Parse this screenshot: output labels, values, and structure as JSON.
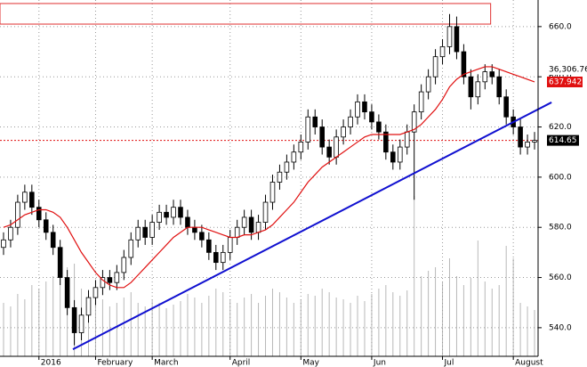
{
  "chart_data": {
    "type": "candlestick",
    "categories": [
      null,
      null,
      null,
      null,
      null,
      "2016",
      null,
      null,
      null,
      null,
      null,
      null,
      null,
      "February",
      null,
      null,
      null,
      null,
      null,
      null,
      null,
      "March",
      null,
      null,
      null,
      null,
      null,
      null,
      null,
      null,
      null,
      null,
      "April",
      null,
      null,
      null,
      null,
      null,
      null,
      null,
      null,
      null,
      "May",
      null,
      null,
      null,
      null,
      null,
      null,
      null,
      null,
      null,
      "Jun",
      null,
      null,
      null,
      null,
      null,
      null,
      null,
      null,
      null,
      "Jul",
      null,
      null,
      null,
      null,
      null,
      null,
      null,
      null,
      null,
      "August",
      null,
      null,
      null
    ],
    "open": [
      572,
      575,
      580,
      590,
      594,
      588,
      583,
      578,
      572,
      560,
      548,
      538,
      545,
      552,
      556,
      560,
      558,
      562,
      568,
      575,
      580,
      576,
      582,
      586,
      584,
      588,
      584,
      580,
      578,
      575,
      570,
      566,
      570,
      576,
      580,
      584,
      578,
      582,
      590,
      598,
      602,
      606,
      610,
      614,
      624,
      620,
      612,
      608,
      616,
      620,
      624,
      630,
      626,
      622,
      618,
      610,
      606,
      612,
      618,
      626,
      634,
      640,
      648,
      652,
      660,
      650,
      640,
      632,
      638,
      642,
      640,
      632,
      624,
      620,
      612,
      614
    ],
    "high": [
      578,
      583,
      593,
      597,
      597,
      591,
      586,
      581,
      575,
      563,
      551,
      548,
      555,
      559,
      563,
      563,
      565,
      571,
      578,
      583,
      583,
      585,
      589,
      589,
      591,
      591,
      587,
      583,
      581,
      578,
      573,
      573,
      579,
      583,
      587,
      587,
      585,
      593,
      601,
      605,
      609,
      613,
      617,
      627,
      627,
      623,
      615,
      619,
      623,
      627,
      633,
      633,
      629,
      625,
      621,
      613,
      615,
      621,
      629,
      637,
      643,
      651,
      655,
      665,
      664,
      653,
      643,
      641,
      645,
      645,
      643,
      635,
      627,
      623,
      617,
      618
    ],
    "low": [
      569,
      572,
      577,
      587,
      585,
      580,
      575,
      569,
      557,
      545,
      533,
      535,
      542,
      549,
      553,
      555,
      555,
      559,
      565,
      572,
      573,
      573,
      579,
      581,
      581,
      581,
      577,
      575,
      572,
      567,
      563,
      563,
      567,
      573,
      577,
      575,
      575,
      579,
      587,
      595,
      599,
      603,
      607,
      611,
      617,
      609,
      605,
      605,
      613,
      617,
      621,
      623,
      619,
      615,
      607,
      603,
      603,
      609,
      591,
      623,
      631,
      637,
      645,
      649,
      647,
      637,
      627,
      629,
      635,
      637,
      629,
      621,
      617,
      609,
      609,
      611
    ],
    "close": [
      575,
      580,
      590,
      594,
      588,
      583,
      578,
      572,
      560,
      548,
      538,
      545,
      552,
      556,
      560,
      558,
      562,
      568,
      575,
      580,
      576,
      582,
      586,
      584,
      588,
      584,
      580,
      578,
      575,
      570,
      566,
      570,
      576,
      580,
      584,
      578,
      582,
      590,
      598,
      602,
      606,
      610,
      614,
      624,
      620,
      612,
      608,
      616,
      620,
      624,
      630,
      626,
      622,
      618,
      610,
      606,
      612,
      618,
      626,
      634,
      640,
      648,
      652,
      660,
      650,
      640,
      632,
      638,
      642,
      640,
      632,
      624,
      620,
      612,
      614,
      614.65
    ],
    "moving_average": [
      580,
      581,
      583,
      585,
      586,
      587,
      587,
      586,
      584,
      580,
      575,
      570,
      566,
      562,
      559,
      557,
      556,
      556,
      558,
      561,
      564,
      567,
      570,
      573,
      576,
      578,
      580,
      580,
      580,
      579,
      578,
      577,
      576,
      576,
      577,
      577,
      578,
      579,
      581,
      584,
      587,
      590,
      594,
      598,
      601,
      604,
      606,
      608,
      610,
      612,
      614,
      616,
      617,
      617,
      617,
      617,
      617,
      618,
      619,
      621,
      624,
      627,
      631,
      636,
      639,
      641,
      642,
      643,
      644,
      644,
      643,
      642,
      641,
      640,
      639,
      637.942
    ],
    "volume": [
      30,
      28,
      35,
      32,
      40,
      38,
      42,
      45,
      48,
      50,
      52,
      38,
      35,
      30,
      32,
      28,
      30,
      33,
      36,
      30,
      28,
      32,
      30,
      27,
      29,
      31,
      35,
      33,
      30,
      34,
      38,
      36,
      32,
      30,
      33,
      35,
      30,
      34,
      38,
      36,
      33,
      30,
      32,
      35,
      34,
      38,
      36,
      33,
      32,
      30,
      34,
      31,
      35,
      38,
      40,
      36,
      34,
      37,
      90,
      45,
      48,
      50,
      42,
      55,
      45,
      40,
      44,
      65,
      42,
      38,
      40,
      62,
      55,
      30,
      28,
      26
    ],
    "volume_lim": [
      0,
      100
    ],
    "ylim": [
      528.6,
      670.6
    ],
    "yticks": [
      {
        "value": 540,
        "label": "540.0"
      },
      {
        "value": 560,
        "label": "560.0"
      },
      {
        "value": 580,
        "label": "580.0"
      },
      {
        "value": 600,
        "label": "600.0"
      },
      {
        "value": 620,
        "label": "620.0"
      },
      {
        "value": 640,
        "label": "640.0"
      },
      {
        "value": 660,
        "label": "660.0"
      }
    ],
    "grid": true,
    "trendline": {
      "x": [
        9.8,
        77.4
      ],
      "y": [
        531.4,
        629.8
      ],
      "color": "#1010d0"
    },
    "zone": {
      "ylim": [
        661,
        669.2
      ],
      "x_end": 68.8,
      "color": "#e03030"
    },
    "ma_color": "#e01010",
    "last_price": 614.65,
    "ma_last": 637.942,
    "volume_label": "36,306.76"
  }
}
